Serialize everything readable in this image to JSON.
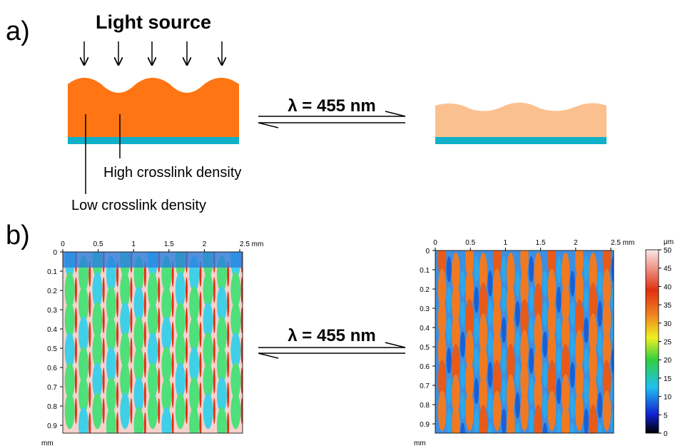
{
  "panel_a": {
    "label": "a)",
    "light_source": "Light source",
    "wavelength": "λ = 455 nm",
    "high_crosslink": "High crosslink density",
    "low_crosslink": "Low crosslink density"
  },
  "panel_b": {
    "label": "b)",
    "wavelength": "λ = 455 nm",
    "x_ticks": [
      "0",
      "0.5",
      "1",
      "1.5",
      "2",
      "2.5 mm"
    ],
    "y_ticks": [
      "0",
      "0.1",
      "0.2",
      "0.3",
      "0.4",
      "0.5",
      "0.6",
      "0.7",
      "0.8",
      "0.9"
    ],
    "y_unit": "mm",
    "colorbar": {
      "unit": "μm",
      "ticks": [
        "0",
        "5",
        "10",
        "15",
        "20",
        "25",
        "30",
        "35",
        "40",
        "45",
        "50"
      ]
    }
  }
}
